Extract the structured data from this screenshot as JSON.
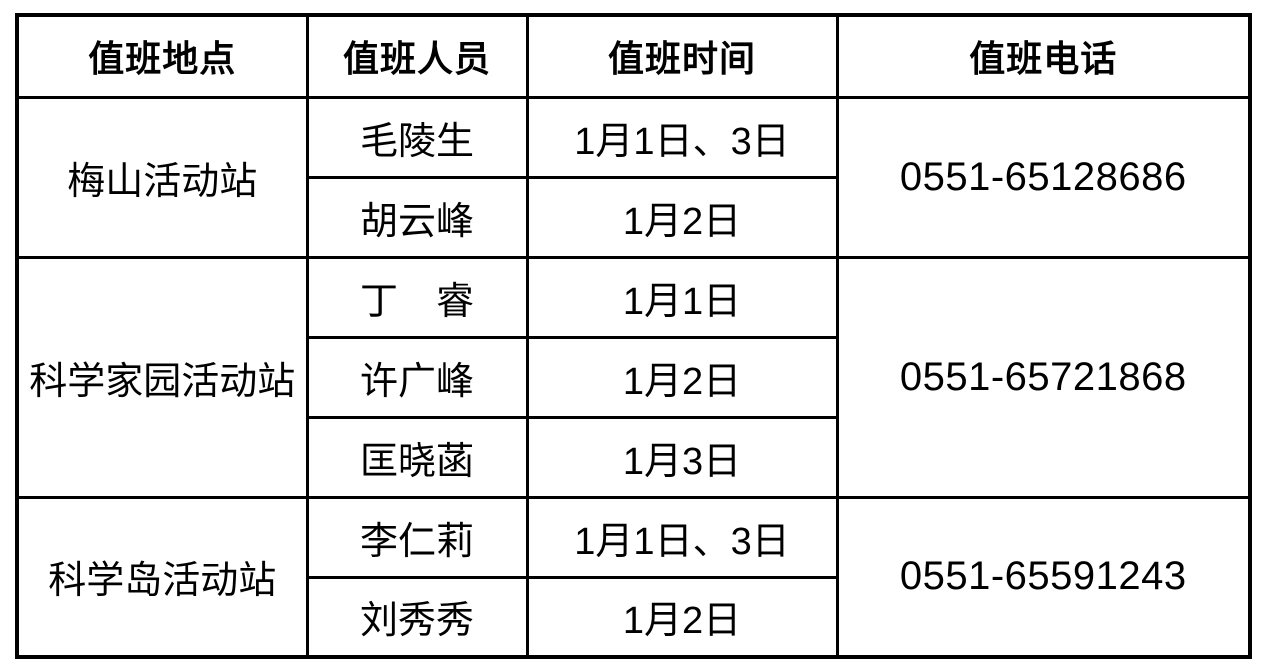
{
  "table": {
    "headers": {
      "location": "值班地点",
      "personnel": "值班人员",
      "time": "值班时间",
      "phone": "值班电话"
    },
    "groups": [
      {
        "location": "梅山活动站",
        "phone": "0551-65128686",
        "staff": [
          {
            "name": "毛陵生",
            "time": "1月1日、3日"
          },
          {
            "name": "胡云峰",
            "time": "1月2日"
          }
        ]
      },
      {
        "location": "科学家园活动站",
        "phone": "0551-65721868",
        "staff": [
          {
            "name": "丁　睿",
            "time": "1月1日"
          },
          {
            "name": "许广峰",
            "time": "1月2日"
          },
          {
            "name": "匡晓菡",
            "time": "1月3日"
          }
        ]
      },
      {
        "location": "科学岛活动站",
        "phone": "0551-65591243",
        "staff": [
          {
            "name": "李仁莉",
            "time": "1月1日、3日"
          },
          {
            "name": "刘秀秀",
            "time": "1月2日"
          }
        ]
      }
    ],
    "colors": {
      "border": "#000000",
      "text": "#000000",
      "background": "#ffffff"
    }
  }
}
